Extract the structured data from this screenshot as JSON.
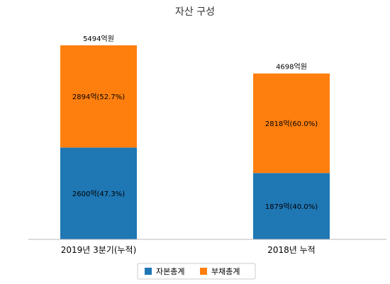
{
  "chart_data": {
    "type": "bar",
    "stacked": true,
    "title": "자산 구성",
    "xlabel": "",
    "ylabel": "",
    "categories": [
      "2019년 3분기(누적)",
      "2018년 누적"
    ],
    "totals": [
      5494,
      4698
    ],
    "total_labels": [
      "5494억원",
      "4698억원"
    ],
    "series": [
      {
        "name": "자본총계",
        "color": "#1f77b4",
        "values": [
          2600,
          1879
        ],
        "labels": [
          "2600억(47.3%)",
          "1879억(40.0%)"
        ]
      },
      {
        "name": "부채총계",
        "color": "#ff7f0e",
        "values": [
          2894,
          2818
        ],
        "labels": [
          "2894억(52.7%)",
          "2818억(60.0%)"
        ]
      }
    ],
    "ylim": [
      0,
      5494
    ],
    "grid": false,
    "legend": "bottom-center"
  }
}
